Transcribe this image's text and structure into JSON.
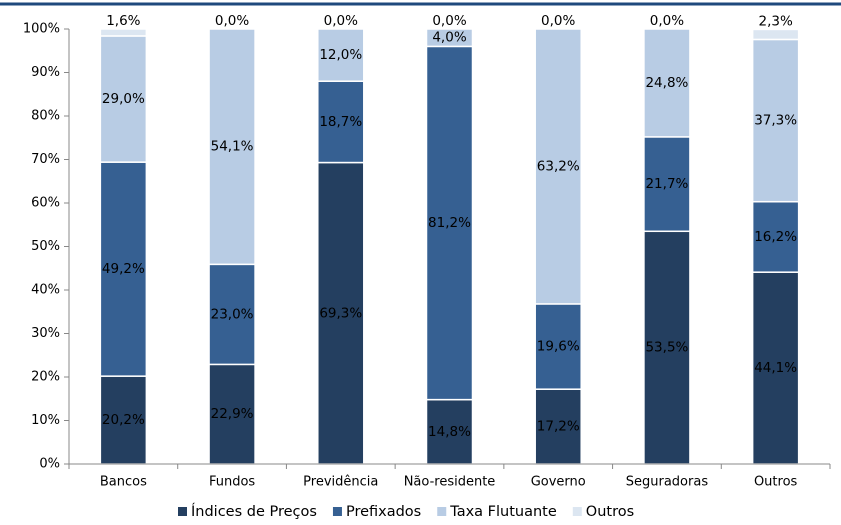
{
  "chart_data": {
    "type": "stacked_bar",
    "categories": [
      "Bancos",
      "Fundos",
      "Previdência",
      "Não-residente",
      "Governo",
      "Seguradoras",
      "Outros"
    ],
    "series": [
      {
        "name": "Índices de Preços",
        "color": "#243f60",
        "values": [
          20.2,
          22.9,
          69.3,
          14.8,
          17.2,
          53.5,
          44.1
        ],
        "value_labels": [
          "20,2%",
          "22,9%",
          "69,3%",
          "14,8%",
          "17,2%",
          "53,5%",
          "44,1%"
        ]
      },
      {
        "name": "Prefixados",
        "color": "#366092",
        "values": [
          49.2,
          23.0,
          18.7,
          81.2,
          19.6,
          21.7,
          16.2
        ],
        "value_labels": [
          "49,2%",
          "23,0%",
          "18,7%",
          "81,2%",
          "19,6%",
          "21,7%",
          "16,2%"
        ]
      },
      {
        "name": "Taxa Flutuante",
        "color": "#b8cce4",
        "values": [
          29.0,
          54.1,
          12.0,
          4.0,
          63.2,
          24.8,
          37.3
        ],
        "value_labels": [
          "29,0%",
          "54,1%",
          "12,0%",
          "4,0%",
          "63,2%",
          "24,8%",
          "37,3%"
        ]
      },
      {
        "name": "Outros",
        "color": "#dce6f1",
        "values": [
          1.6,
          0.0,
          0.0,
          0.0,
          0.0,
          0.0,
          2.3
        ],
        "value_labels": [
          "1,6%",
          "0,0%",
          "0,0%",
          "0,0%",
          "0,0%",
          "0,0%",
          "2,3%"
        ]
      }
    ],
    "ylim": [
      0,
      100
    ],
    "yticks": [
      {
        "value": 0,
        "label": "0%"
      },
      {
        "value": 10,
        "label": "10%"
      },
      {
        "value": 20,
        "label": "20%"
      },
      {
        "value": 30,
        "label": "30%"
      },
      {
        "value": 40,
        "label": "40%"
      },
      {
        "value": 50,
        "label": "50%"
      },
      {
        "value": 60,
        "label": "60%"
      },
      {
        "value": 70,
        "label": "70%"
      },
      {
        "value": 80,
        "label": "80%"
      },
      {
        "value": 90,
        "label": "90%"
      },
      {
        "value": 100,
        "label": "100%"
      }
    ],
    "legend": "bottom"
  }
}
